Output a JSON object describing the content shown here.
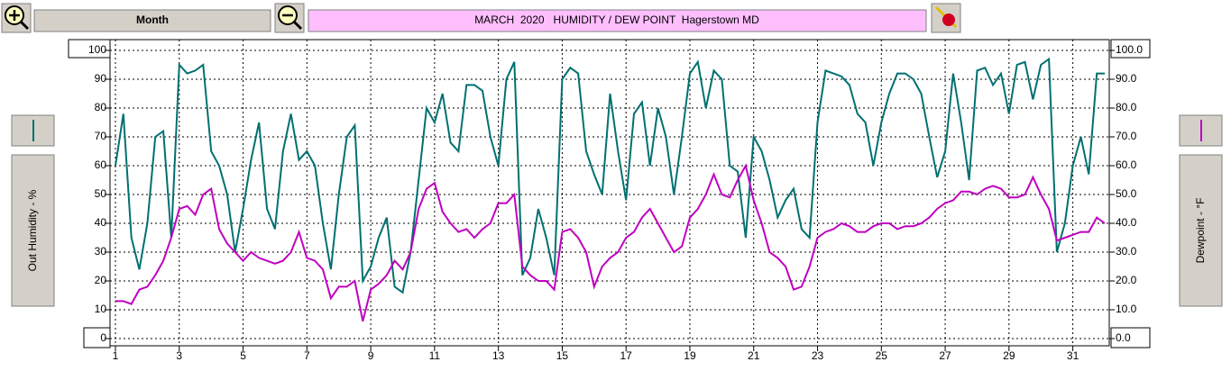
{
  "toolbar": {
    "range": "Month"
  },
  "chart_data": {
    "type": "line",
    "title": "MARCH  2020   HUMIDITY / DEW POINT  Hagerstown MD",
    "x": [
      1,
      1.25,
      1.5,
      1.75,
      2,
      2.25,
      2.5,
      2.75,
      3,
      3.25,
      3.5,
      3.75,
      4,
      4.25,
      4.5,
      4.75,
      5,
      5.25,
      5.5,
      5.75,
      6,
      6.25,
      6.5,
      6.75,
      7,
      7.25,
      7.5,
      7.75,
      8,
      8.25,
      8.5,
      8.75,
      9,
      9.25,
      9.5,
      9.75,
      10,
      10.25,
      10.5,
      10.75,
      11,
      11.25,
      11.5,
      11.75,
      12,
      12.25,
      12.5,
      12.75,
      13,
      13.25,
      13.5,
      13.75,
      14,
      14.25,
      14.5,
      14.75,
      15,
      15.25,
      15.5,
      15.75,
      16,
      16.25,
      16.5,
      16.75,
      17,
      17.25,
      17.5,
      17.75,
      18,
      18.25,
      18.5,
      18.75,
      19,
      19.25,
      19.5,
      19.75,
      20,
      20.25,
      20.5,
      20.75,
      21,
      21.25,
      21.5,
      21.75,
      22,
      22.25,
      22.5,
      22.75,
      23,
      23.25,
      23.5,
      23.75,
      24,
      24.25,
      24.5,
      24.75,
      25,
      25.25,
      25.5,
      25.75,
      26,
      26.25,
      26.5,
      26.75,
      27,
      27.25,
      27.5,
      27.75,
      28,
      28.25,
      28.5,
      28.75,
      29,
      29.25,
      29.5,
      29.75,
      30,
      30.25,
      30.5,
      30.75,
      31,
      31.25,
      31.5,
      31.75,
      32
    ],
    "series": [
      {
        "name": "Out Humidity - %",
        "color": "#007070",
        "values": [
          60,
          78,
          35,
          24,
          40,
          70,
          72,
          35,
          95,
          92,
          93,
          95,
          65,
          60,
          50,
          30,
          45,
          62,
          75,
          45,
          38,
          65,
          78,
          62,
          65,
          60,
          40,
          24,
          50,
          70,
          74,
          20,
          25,
          35,
          42,
          18,
          16,
          30,
          55,
          80,
          75,
          85,
          68,
          65,
          88,
          88,
          86,
          70,
          60,
          90,
          96,
          22,
          28,
          45,
          35,
          22,
          90,
          94,
          92,
          65,
          57,
          50,
          85,
          65,
          48,
          78,
          82,
          60,
          80,
          70,
          50,
          70,
          92,
          96,
          80,
          93,
          90,
          60,
          58,
          35,
          70,
          65,
          55,
          42,
          48,
          52,
          38,
          35,
          75,
          93,
          92,
          91,
          88,
          78,
          75,
          60,
          75,
          85,
          92,
          92,
          90,
          85,
          70,
          56,
          65,
          92,
          75,
          55,
          93,
          94,
          88,
          92,
          78,
          95,
          96,
          83,
          95,
          97,
          30,
          40,
          60,
          70,
          57,
          92,
          92
        ]
      },
      {
        "name": "Dewpoint - °F",
        "color": "#c000c0",
        "axis": "y2",
        "values": [
          13,
          13,
          12,
          17,
          18,
          22,
          27,
          35,
          45,
          46,
          43,
          50,
          52,
          38,
          33,
          30,
          27,
          30,
          28,
          27,
          26,
          27,
          30,
          37,
          28,
          27,
          24,
          14,
          18,
          18,
          20,
          6,
          17,
          19,
          22,
          27,
          24,
          30,
          45,
          52,
          54,
          44,
          40,
          37,
          38,
          35,
          38,
          40,
          47,
          47,
          50,
          25,
          22,
          20,
          20,
          17,
          37,
          38,
          35,
          30,
          18,
          25,
          28,
          30,
          35,
          37,
          42,
          45,
          40,
          35,
          30,
          32,
          42,
          45,
          50,
          57,
          50,
          49,
          55,
          60,
          48,
          40,
          30,
          28,
          25,
          17,
          18,
          25,
          35,
          37,
          38,
          40,
          39,
          37,
          37,
          39,
          40,
          40,
          38,
          39,
          39,
          40,
          42,
          45,
          47,
          48,
          51,
          51,
          50,
          52,
          53,
          52,
          49,
          49,
          50,
          56,
          50,
          45,
          34,
          35,
          36,
          37,
          37,
          42,
          40
        ]
      }
    ],
    "xlim": [
      1,
      32
    ],
    "xticks": [
      1,
      3,
      5,
      7,
      9,
      11,
      13,
      15,
      17,
      19,
      21,
      23,
      25,
      27,
      29,
      31
    ],
    "ylim": [
      0,
      100
    ],
    "yticks": [
      0,
      10,
      20,
      30,
      40,
      50,
      60,
      70,
      80,
      90,
      100
    ],
    "y2lim": [
      0,
      100
    ],
    "y2ticks": [
      {
        "value": 0,
        "label": "0.0"
      },
      {
        "value": 10,
        "label": "10.0"
      },
      {
        "value": 20,
        "label": "20.0"
      },
      {
        "value": 30,
        "label": "30.0"
      },
      {
        "value": 40,
        "label": "40.0"
      },
      {
        "value": 50,
        "label": "50.0"
      },
      {
        "value": 60,
        "label": "60.0"
      },
      {
        "value": 70,
        "label": "70.0"
      },
      {
        "value": 80,
        "label": "80.0"
      },
      {
        "value": 90,
        "label": "90.0"
      },
      {
        "value": 100,
        "label": "100.0"
      }
    ],
    "grid": true
  }
}
